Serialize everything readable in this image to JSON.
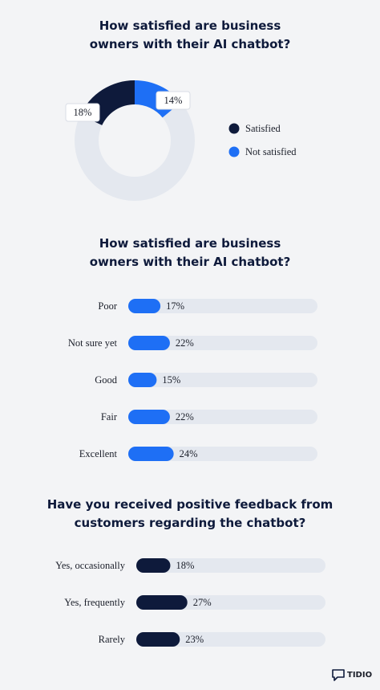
{
  "chart_data": [
    {
      "type": "donut",
      "title": "How satisfied are business owners with their AI chatbot?",
      "categories": [
        "Satisfied",
        "Not satisfied"
      ],
      "values": [
        18,
        14
      ],
      "value_labels": [
        "18%",
        "14%"
      ],
      "colors": [
        "#0e1a3b",
        "#1e6ff5"
      ],
      "track_color": "#e4e8ef",
      "legend": "right"
    },
    {
      "type": "bar",
      "orientation": "horizontal",
      "title": "How satisfied are business owners with their AI chatbot?",
      "categories": [
        "Poor",
        "Not sure yet",
        "Good",
        "Fair",
        "Excellent"
      ],
      "values": [
        17,
        22,
        15,
        22,
        24
      ],
      "value_labels": [
        "17%",
        "22%",
        "15%",
        "22%",
        "24%"
      ],
      "color": "#1e6ff5",
      "track_color": "#e4e8ef",
      "xlim": [
        0,
        100
      ]
    },
    {
      "type": "bar",
      "orientation": "horizontal",
      "title": "Have you received positive feedback from customers regarding the chatbot?",
      "categories": [
        "Yes, occasionally",
        "Yes, frequently",
        "Rarely"
      ],
      "values": [
        18,
        27,
        23
      ],
      "value_labels": [
        "18%",
        "27%",
        "23%"
      ],
      "color": "#0e1a3b",
      "track_color": "#e4e8ef",
      "xlim": [
        0,
        100
      ]
    }
  ],
  "footer": {
    "brand": "TIDIO"
  }
}
